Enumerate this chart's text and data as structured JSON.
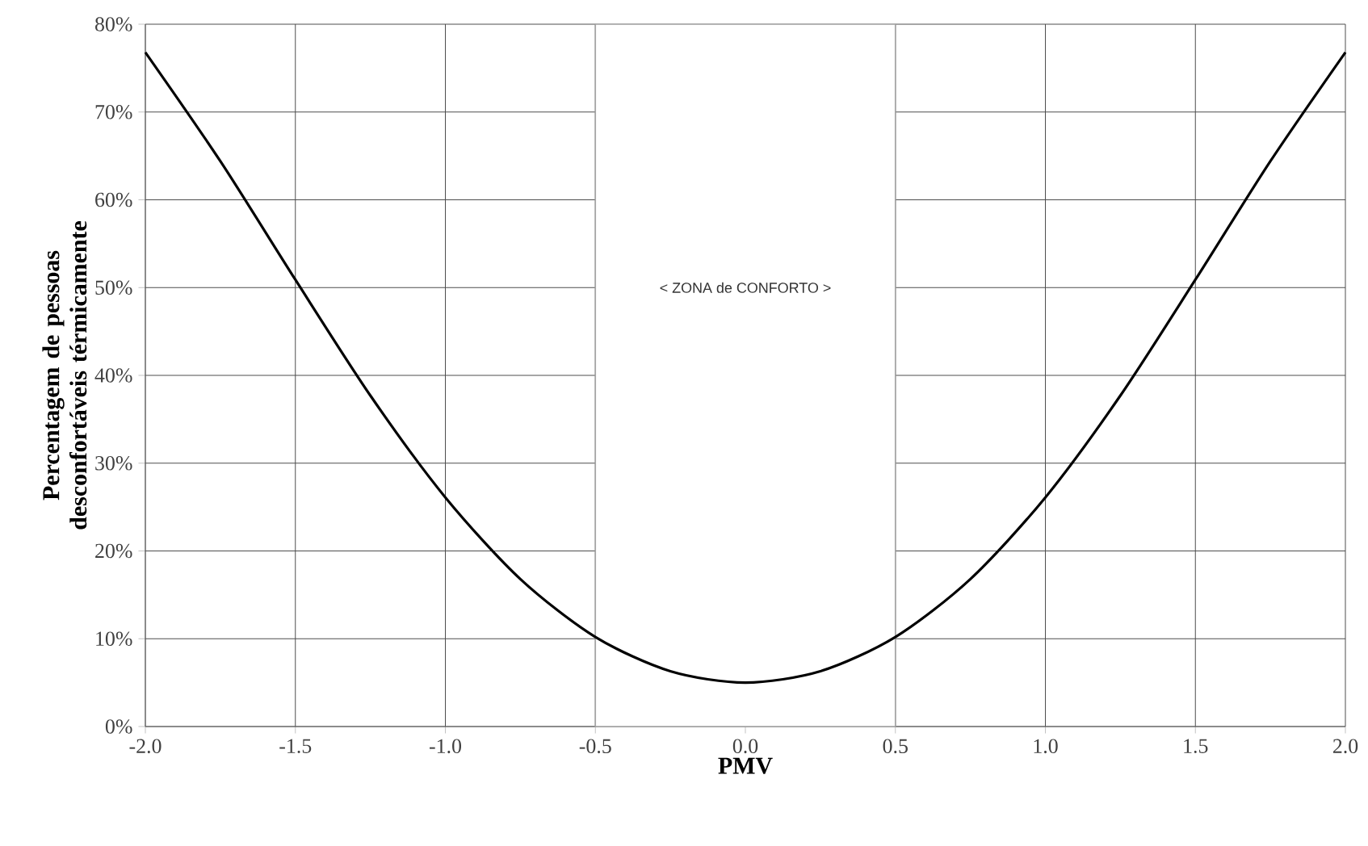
{
  "chart_data": {
    "type": "line",
    "xlabel": "PMV",
    "ylabel": "Percentagem de pessoas desconfortáveis térmicamente",
    "x": [
      -2.0,
      -1.75,
      -1.5,
      -1.25,
      -1.0,
      -0.75,
      -0.5,
      -0.25,
      0.0,
      0.25,
      0.5,
      0.75,
      1.0,
      1.25,
      1.5,
      1.75,
      2.0
    ],
    "series": [
      {
        "color": "#000000",
        "values": [
          76.8,
          64.4,
          50.9,
          37.7,
          26.1,
          16.8,
          10.2,
          6.3,
          5.0,
          6.3,
          10.2,
          16.8,
          26.1,
          37.7,
          50.9,
          64.4,
          76.8
        ]
      }
    ],
    "xlim": [
      -2.0,
      2.0
    ],
    "ylim": [
      0,
      80
    ],
    "xticks": [
      {
        "value": -2.0,
        "label": "-2.0"
      },
      {
        "value": -1.5,
        "label": "-1.5"
      },
      {
        "value": -1.0,
        "label": "-1.0"
      },
      {
        "value": -0.5,
        "label": "-0.5"
      },
      {
        "value": 0.0,
        "label": "0.0"
      },
      {
        "value": 0.5,
        "label": "0.5"
      },
      {
        "value": 1.0,
        "label": "1.0"
      },
      {
        "value": 1.5,
        "label": "1.5"
      },
      {
        "value": 2.0,
        "label": "2.0"
      }
    ],
    "yticks": [
      {
        "value": 0,
        "label": "0%"
      },
      {
        "value": 10,
        "label": "10%"
      },
      {
        "value": 20,
        "label": "20%"
      },
      {
        "value": 30,
        "label": "30%"
      },
      {
        "value": 40,
        "label": "40%"
      },
      {
        "value": 50,
        "label": "50%"
      },
      {
        "value": 60,
        "label": "60%"
      },
      {
        "value": 70,
        "label": "70%"
      },
      {
        "value": 80,
        "label": "80%"
      }
    ],
    "bands": [
      {
        "axis": "x",
        "from": -0.5,
        "to": 0.5,
        "label": "<     ZONA de CONFORTO     >",
        "color": "#ffffff"
      }
    ],
    "grid": true,
    "marker": "none",
    "line_style": "solid"
  }
}
